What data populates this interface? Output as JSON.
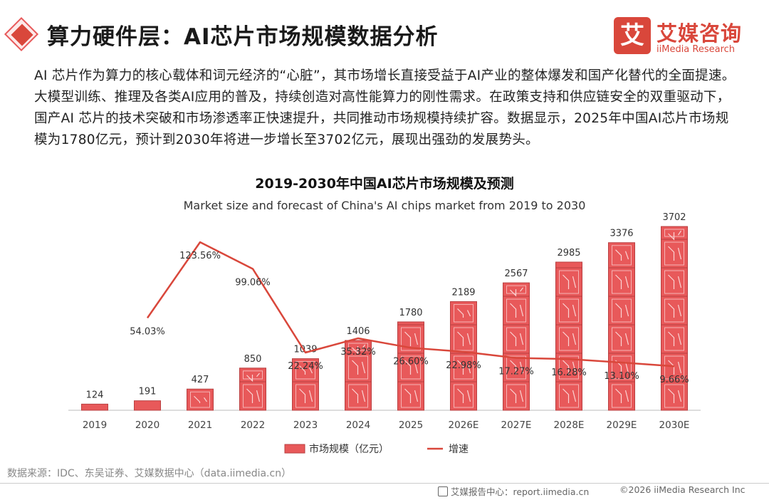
{
  "header": {
    "title": "算力硬件层：AI芯片市场规模数据分析",
    "brand_mark": "艾",
    "brand_cn": "艾媒咨询",
    "brand_en": "iiMedia Research"
  },
  "intro": "AI 芯片作为算力的核心载体和词元经济的“心脏”，其市场增长直接受益于AI产业的整体爆发和国产化替代的全面提速。大模型训练、推理及各类AI应用的普及，持续创造对高性能算力的刚性需求。在政策支持和供应链安全的双重驱动下，国产AI 芯片的技术突破和市场渗透率正快速提升，共同推动市场规模持续扩容。数据显示，2025年中国AI芯片市场规模为1780亿元，预计到2030年将进一步增长至3702亿元，展现出强劲的发展势头。",
  "chart_data": {
    "type": "bar",
    "title": "2019-2030年中国AI芯片市场规模及预测",
    "subtitle": "Market size and forecast of China's AI chips market from 2019 to 2030",
    "categories": [
      "2019",
      "2020",
      "2021",
      "2022",
      "2023",
      "2024",
      "2025",
      "2026E",
      "2027E",
      "2028E",
      "2029E",
      "2030E"
    ],
    "series": [
      {
        "name": "市场规模（亿元）",
        "type": "bar",
        "values": [
          124,
          191,
          427,
          850,
          1039,
          1406,
          1780,
          2189,
          2567,
          2985,
          3376,
          3702
        ],
        "labels": [
          "124",
          "191",
          "427",
          "850",
          "1039",
          "1406",
          "1780",
          "2189",
          "2567",
          "2985",
          "3376",
          "3702"
        ]
      },
      {
        "name": "增速",
        "type": "line",
        "values": [
          null,
          54.03,
          123.56,
          99.06,
          22.24,
          35.32,
          26.6,
          22.98,
          17.27,
          16.28,
          13.1,
          9.66
        ],
        "labels": [
          "",
          "54.03%",
          "123.56%",
          "99.06%",
          "22.24%",
          "35.32%",
          "26.60%",
          "22.98%",
          "17.27%",
          "16.28%",
          "13.10%",
          "9.66%"
        ]
      }
    ],
    "colors": {
      "bar": "#e8595a",
      "bar_dark": "#b93f40",
      "line": "#d9473b",
      "axis": "#bbbbbb"
    },
    "legend_position": "bottom"
  },
  "source": "数据来源：IDC、东吴证券、艾媒数据中心（data.iimedia.cn）",
  "footer": {
    "center": "艾媒报告中心：report.iimedia.cn",
    "right": "©2026  iiMedia Research  Inc"
  }
}
